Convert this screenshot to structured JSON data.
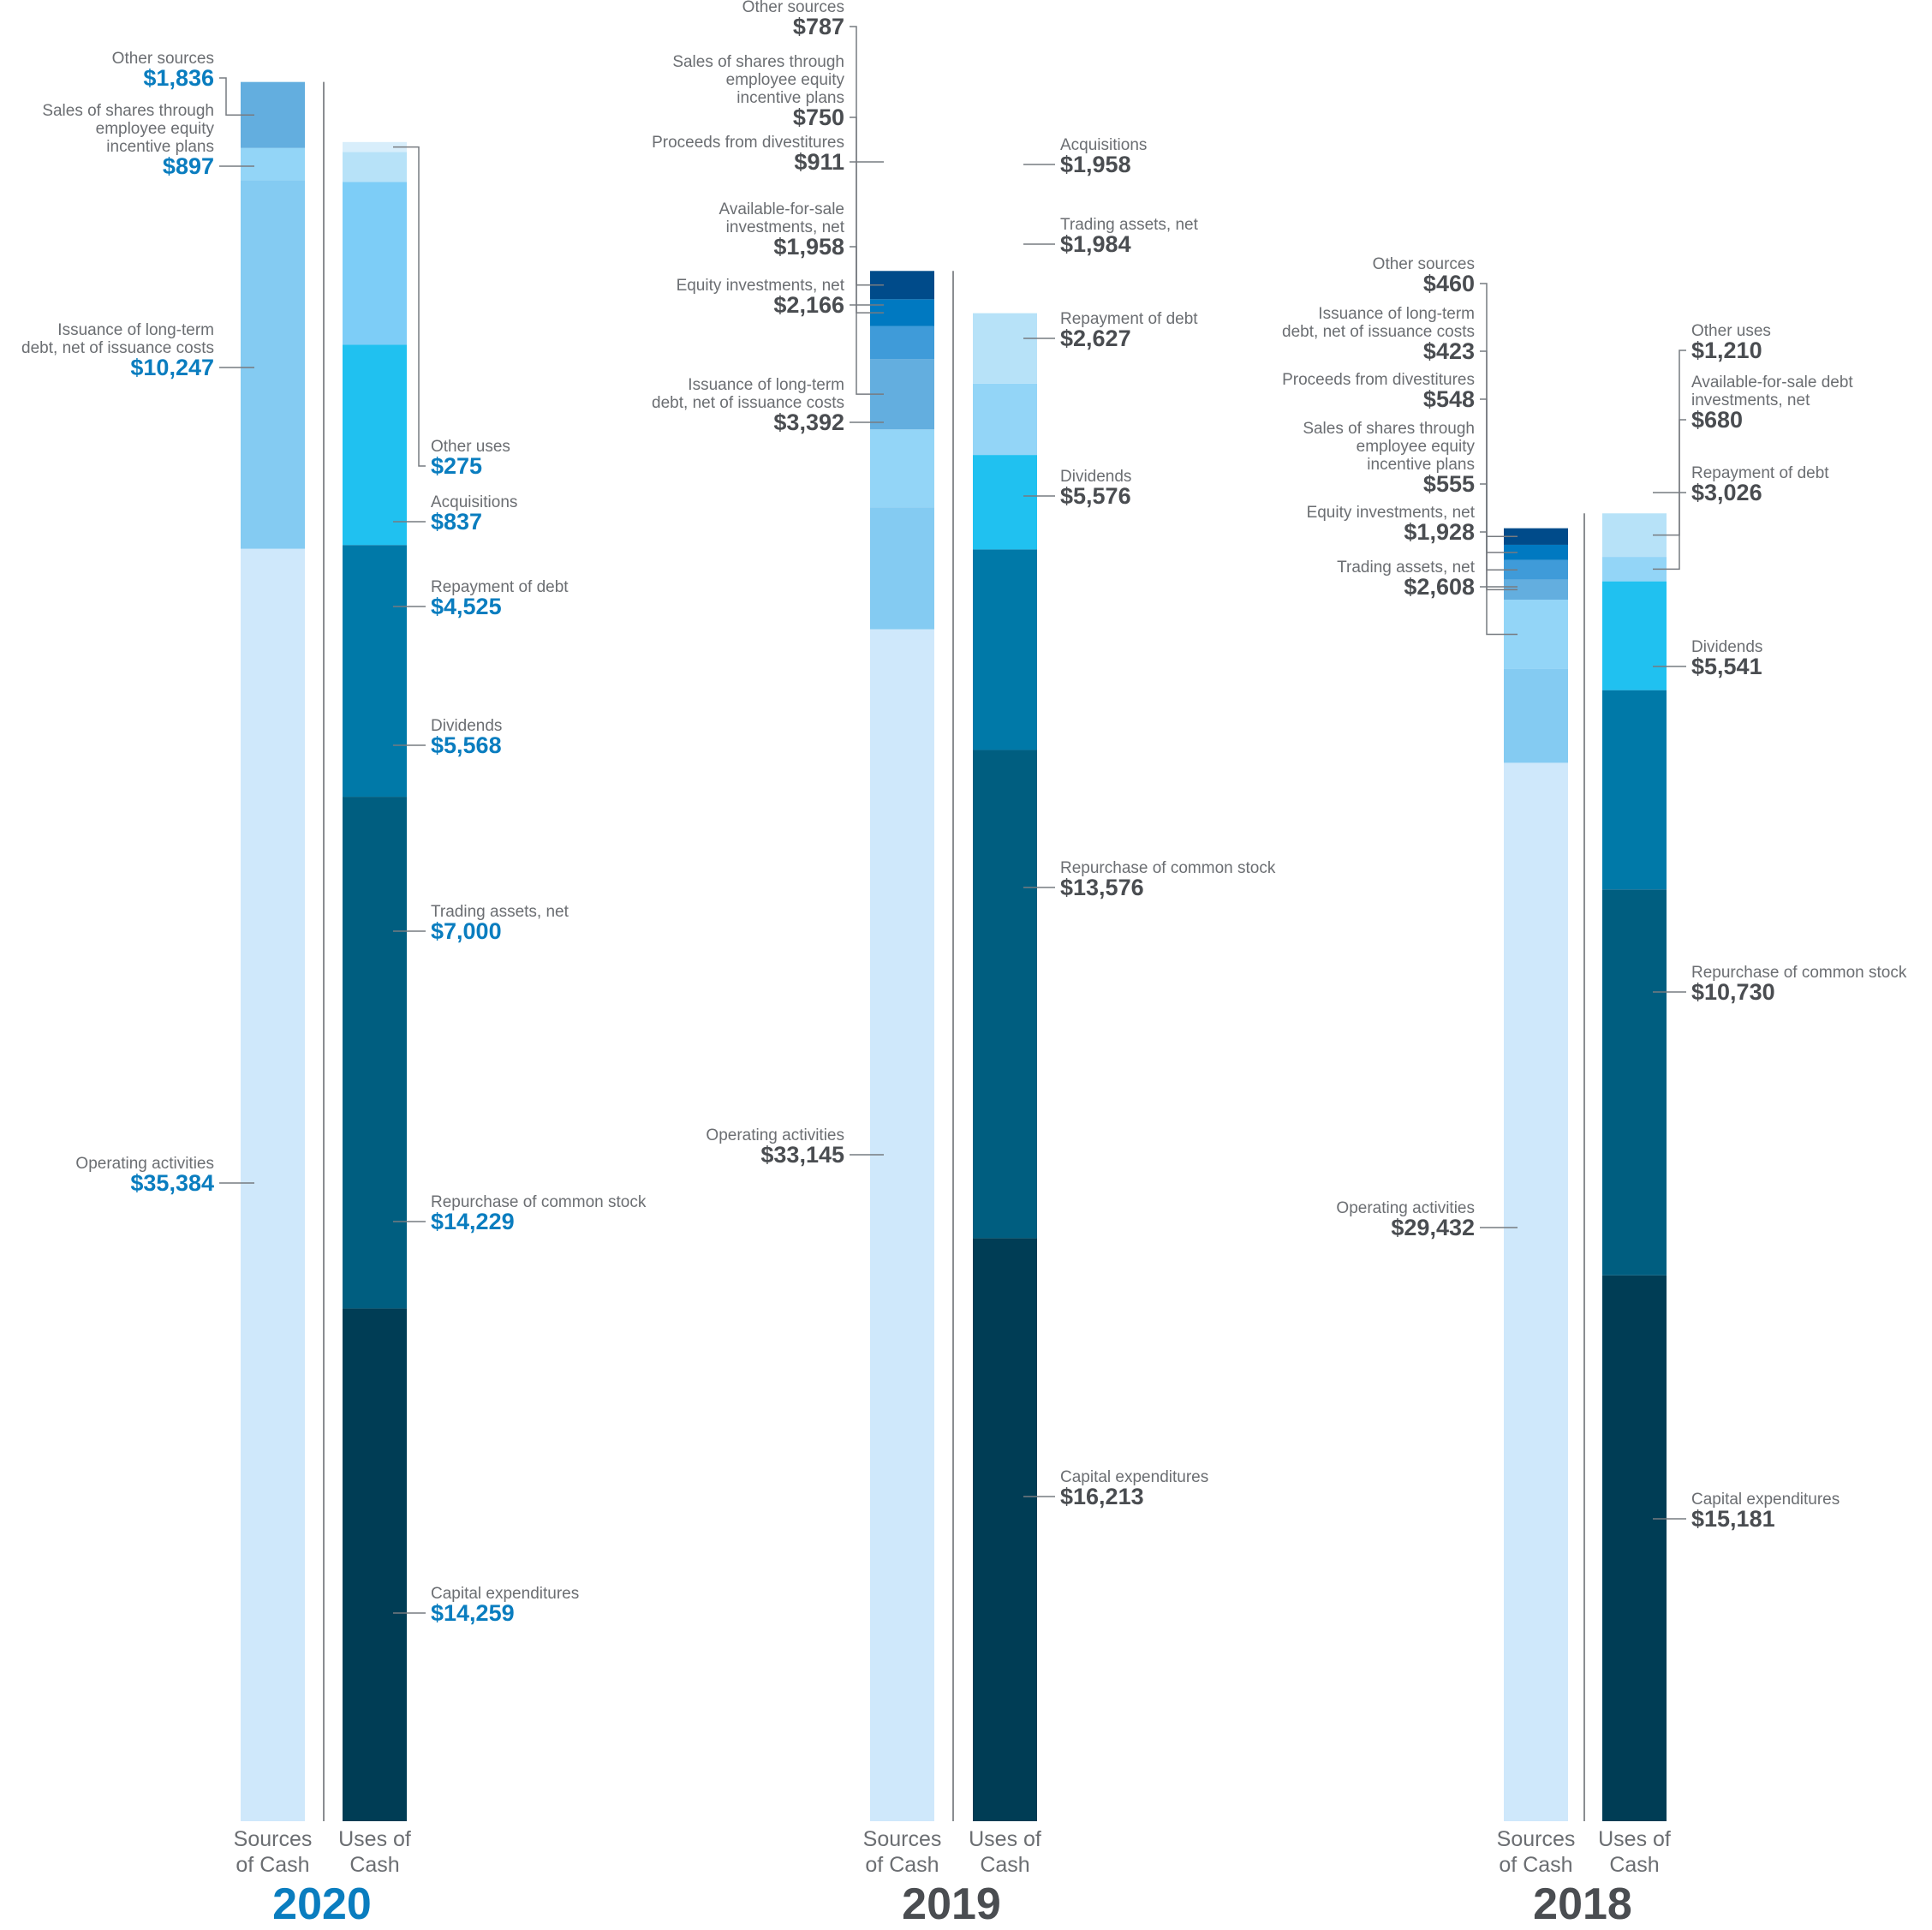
{
  "chart_data": [
    {
      "type": "bar",
      "title": "2020",
      "categories": [
        "Sources of Cash",
        "Uses of Cash"
      ],
      "sources": [
        {
          "name": "Operating activities",
          "label": "$35,384",
          "value": 35384,
          "color": "#cfe8fb"
        },
        {
          "name": "Issuance of long-term debt, net of issuance costs",
          "label": "$10,247",
          "value": 10247,
          "color": "#84cbf2"
        },
        {
          "name": "Sales of shares through employee equity incentive plans",
          "label": "$897",
          "value": 897,
          "color": "#93d5f7"
        },
        {
          "name": "Other sources",
          "label": "$1,836",
          "value": 1836,
          "color": "#63aedf"
        }
      ],
      "uses": [
        {
          "name": "Capital expenditures",
          "label": "$14,259",
          "value": 14259,
          "color": "#003d55"
        },
        {
          "name": "Repurchase of common stock",
          "label": "$14,229",
          "value": 14229,
          "color": "#005e80"
        },
        {
          "name": "Trading assets, net",
          "label": "$7,000",
          "value": 7000,
          "color": "#0079a8"
        },
        {
          "name": "Dividends",
          "label": "$5,568",
          "value": 5568,
          "color": "#20c1f0"
        },
        {
          "name": "Repayment of debt",
          "label": "$4,525",
          "value": 4525,
          "color": "#7dcdf7"
        },
        {
          "name": "Acquisitions",
          "label": "$837",
          "value": 837,
          "color": "#b7e2f8"
        },
        {
          "name": "Other uses",
          "label": "$275",
          "value": 275,
          "color": "#d8eefb"
        }
      ]
    },
    {
      "type": "bar",
      "title": "2019",
      "categories": [
        "Sources of Cash",
        "Uses of Cash"
      ],
      "sources": [
        {
          "name": "Operating activities",
          "label": "$33,145",
          "value": 33145,
          "color": "#cfe8fb"
        },
        {
          "name": "Issuance of long-term debt, net of issuance costs",
          "label": "$3,392",
          "value": 3392,
          "color": "#84cbf2"
        },
        {
          "name": "Equity investments, net",
          "label": "$2,166",
          "value": 2166,
          "color": "#93d5f7"
        },
        {
          "name": "Available-for-sale investments, net",
          "label": "$1,958",
          "value": 1958,
          "color": "#63aedf"
        },
        {
          "name": "Proceeds from divestitures",
          "label": "$911",
          "value": 911,
          "color": "#3f9bd9"
        },
        {
          "name": "Sales of shares through employee equity incentive plans",
          "label": "$750",
          "value": 750,
          "color": "#0079c1"
        },
        {
          "name": "Other sources",
          "label": "$787",
          "value": 787,
          "color": "#004b8a"
        }
      ],
      "uses": [
        {
          "name": "Capital expenditures",
          "label": "$16,213",
          "value": 16213,
          "color": "#003d55"
        },
        {
          "name": "Repurchase of common stock",
          "label": "$13,576",
          "value": 13576,
          "color": "#005e80"
        },
        {
          "name": "Dividends",
          "label": "$5,576",
          "value": 5576,
          "color": "#0079a8"
        },
        {
          "name": "Repayment of debt",
          "label": "$2,627",
          "value": 2627,
          "color": "#20c1f0"
        },
        {
          "name": "Trading assets, net",
          "label": "$1,984",
          "value": 1984,
          "color": "#93d5f7"
        },
        {
          "name": "Acquisitions",
          "label": "$1,958",
          "value": 1958,
          "color": "#b7e2f8"
        }
      ]
    },
    {
      "type": "bar",
      "title": "2018",
      "categories": [
        "Sources of Cash",
        "Uses of Cash"
      ],
      "sources": [
        {
          "name": "Operating activities",
          "label": "$29,432",
          "value": 29432,
          "color": "#cfe8fb"
        },
        {
          "name": "Trading assets, net",
          "label": "$2,608",
          "value": 2608,
          "color": "#84cbf2"
        },
        {
          "name": "Equity investments, net",
          "label": "$1,928",
          "value": 1928,
          "color": "#93d5f7"
        },
        {
          "name": "Sales of shares through employee equity incentive plans",
          "label": "$555",
          "value": 555,
          "color": "#63aedf"
        },
        {
          "name": "Proceeds from divestitures",
          "label": "$548",
          "value": 548,
          "color": "#3f9bd9"
        },
        {
          "name": "Issuance of long-term debt, net of issuance costs",
          "label": "$423",
          "value": 423,
          "color": "#0079c1"
        },
        {
          "name": "Other sources",
          "label": "$460",
          "value": 460,
          "color": "#004b8a"
        }
      ],
      "uses": [
        {
          "name": "Capital expenditures",
          "label": "$15,181",
          "value": 15181,
          "color": "#003d55"
        },
        {
          "name": "Repurchase of common stock",
          "label": "$10,730",
          "value": 10730,
          "color": "#005e80"
        },
        {
          "name": "Dividends",
          "label": "$5,541",
          "value": 5541,
          "color": "#0079a8"
        },
        {
          "name": "Repayment of debt",
          "label": "$3,026",
          "value": 3026,
          "color": "#20c1f0"
        },
        {
          "name": "Available-for-sale debt investments, net",
          "label": "$680",
          "value": 680,
          "color": "#93d5f7"
        },
        {
          "name": "Other uses",
          "label": "$1,210",
          "value": 1210,
          "color": "#b7e2f8"
        }
      ]
    }
  ],
  "axis_labels": {
    "sources": "Sources of Cash",
    "uses": "Uses of Cash"
  },
  "colors": {
    "current_year": "#0a7dbf",
    "prior_year": "#4a4d51",
    "label_text": "#6b6e72"
  }
}
